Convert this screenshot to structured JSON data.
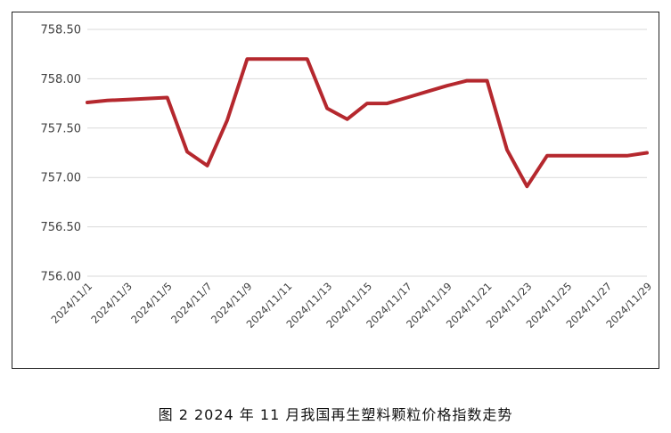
{
  "caption": "图 2  2024 年 11 月我国再生塑料颗粒价格指数走势",
  "colors": {
    "line": "#b5282e",
    "grid": "#d9d9d9",
    "text": "#404040",
    "frame": "#222222"
  },
  "chart_data": {
    "type": "line",
    "title": "",
    "xlabel": "",
    "ylabel": "",
    "ylim": [
      756.0,
      758.5
    ],
    "y_ticks": [
      "756.00",
      "756.50",
      "757.00",
      "757.50",
      "758.00",
      "758.50"
    ],
    "grid": "horizontal",
    "legend": "none",
    "x_tick_labels": [
      "2024/11/1",
      "2024/11/3",
      "2024/11/5",
      "2024/11/7",
      "2024/11/9",
      "2024/11/11",
      "2024/11/13",
      "2024/11/15",
      "2024/11/17",
      "2024/11/19",
      "2024/11/21",
      "2024/11/23",
      "2024/11/25",
      "2024/11/27",
      "2024/11/29"
    ],
    "x": [
      "2024/11/1",
      "2024/11/2",
      "2024/11/3",
      "2024/11/4",
      "2024/11/5",
      "2024/11/6",
      "2024/11/7",
      "2024/11/8",
      "2024/11/9",
      "2024/11/10",
      "2024/11/11",
      "2024/11/12",
      "2024/11/13",
      "2024/11/14",
      "2024/11/15",
      "2024/11/16",
      "2024/11/17",
      "2024/11/18",
      "2024/11/19",
      "2024/11/20",
      "2024/11/21",
      "2024/11/22",
      "2024/11/23",
      "2024/11/24",
      "2024/11/25",
      "2024/11/26",
      "2024/11/27",
      "2024/11/28",
      "2024/11/29"
    ],
    "series": [
      {
        "values": [
          757.76,
          757.78,
          757.79,
          757.8,
          757.81,
          757.26,
          757.12,
          757.58,
          758.2,
          758.2,
          758.2,
          758.2,
          757.7,
          757.59,
          757.75,
          757.75,
          757.81,
          757.87,
          757.93,
          757.98,
          757.98,
          757.28,
          756.91,
          757.22,
          757.22,
          757.22,
          757.22,
          757.22,
          757.25
        ]
      }
    ]
  }
}
